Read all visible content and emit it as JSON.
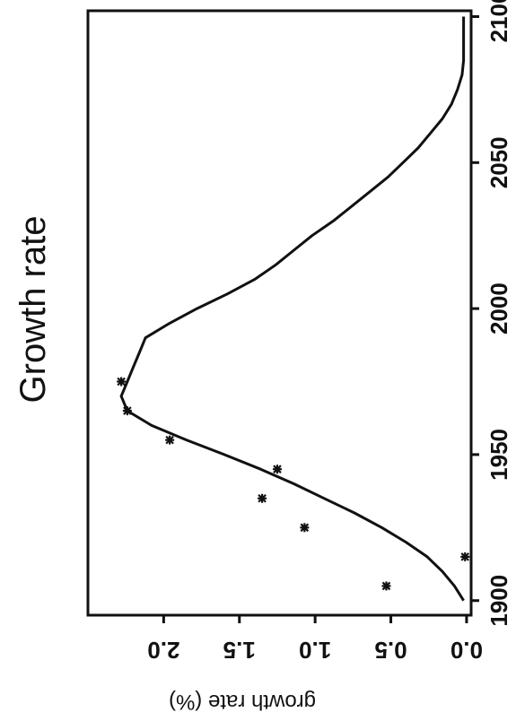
{
  "chart_data": {
    "type": "line",
    "orientation": "rotated-90",
    "title": "Growth rate",
    "xlabel": "",
    "ylabel": "growth rate (%)",
    "xlim": [
      1895,
      2102
    ],
    "ylim": [
      -0.03,
      2.5
    ],
    "x_ticks": [
      {
        "value": 1900,
        "label": "1900"
      },
      {
        "value": 1950,
        "label": "1950"
      },
      {
        "value": 2000,
        "label": "2000"
      },
      {
        "value": 2050,
        "label": "2050"
      },
      {
        "value": 2100,
        "label": "2100"
      }
    ],
    "y_ticks": [
      {
        "value": 0.0,
        "label": "0.0"
      },
      {
        "value": 0.5,
        "label": "0.5"
      },
      {
        "value": 1.0,
        "label": "1.0"
      },
      {
        "value": 1.5,
        "label": "1.5"
      },
      {
        "value": 2.0,
        "label": "2.0"
      }
    ],
    "grid": false,
    "series": [
      {
        "kind": "line",
        "color": "#111111",
        "x": [
          1900,
          1905,
          1910,
          1915,
          1920,
          1925,
          1930,
          1935,
          1940,
          1945,
          1950,
          1955,
          1960,
          1965,
          1970,
          1975,
          1980,
          1985,
          1990,
          1995,
          2000,
          2005,
          2010,
          2015,
          2020,
          2025,
          2030,
          2035,
          2040,
          2045,
          2050,
          2055,
          2060,
          2065,
          2070,
          2075,
          2080,
          2085,
          2090,
          2095,
          2100
        ],
        "y": [
          0.02,
          0.08,
          0.16,
          0.26,
          0.4,
          0.56,
          0.74,
          0.94,
          1.14,
          1.36,
          1.6,
          1.85,
          2.08,
          2.24,
          2.28,
          2.24,
          2.2,
          2.16,
          2.12,
          1.96,
          1.78,
          1.58,
          1.4,
          1.26,
          1.14,
          1.02,
          0.88,
          0.76,
          0.64,
          0.52,
          0.42,
          0.32,
          0.24,
          0.16,
          0.1,
          0.06,
          0.03,
          0.02,
          0.02,
          0.02,
          0.02
        ]
      },
      {
        "kind": "scatter",
        "marker": "asterisk",
        "color": "#111111",
        "x": [
          1905,
          1915,
          1925,
          1935,
          1945,
          1955,
          1965,
          1975
        ],
        "y": [
          0.53,
          0.01,
          1.07,
          1.35,
          1.25,
          1.96,
          2.24,
          2.28
        ]
      }
    ]
  }
}
